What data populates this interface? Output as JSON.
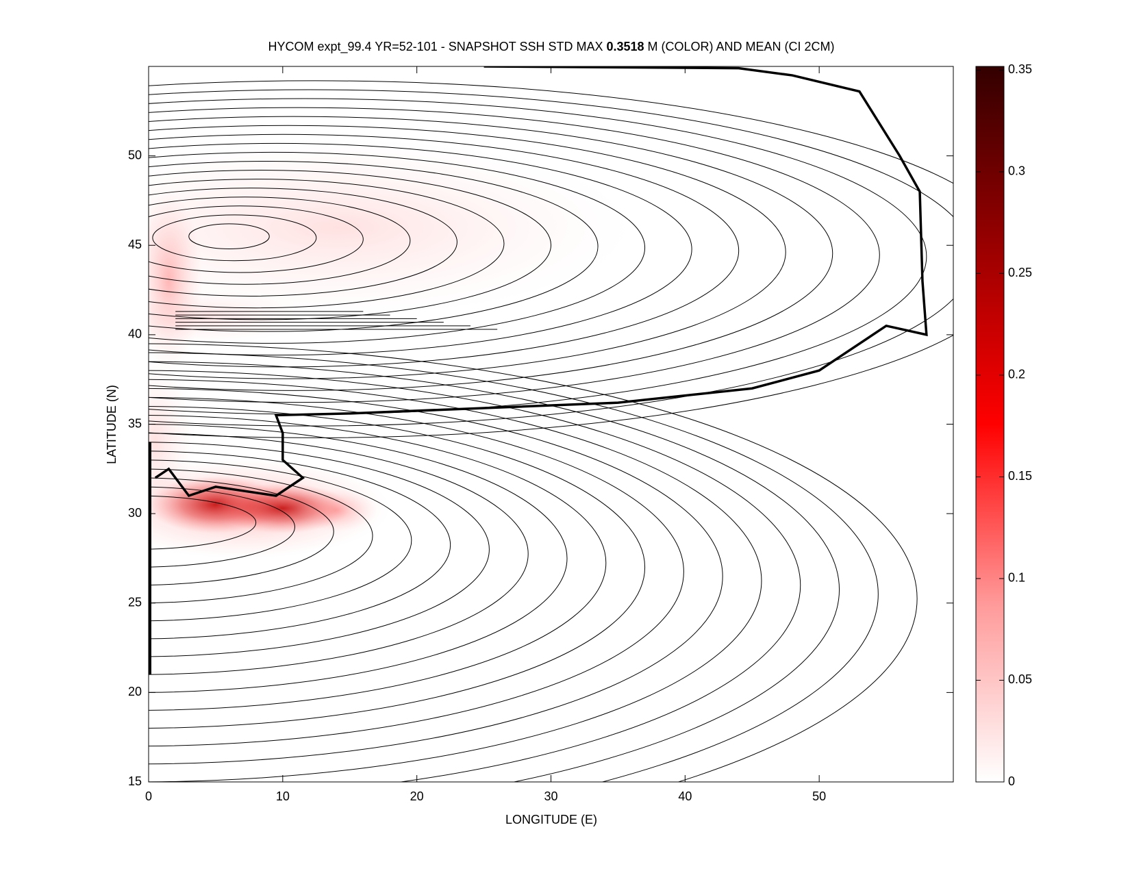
{
  "chart_data": {
    "type": "contour",
    "title_parts": [
      "HYCOM expt_99.4 YR=52-101 - SNAPSHOT SSH STD MAX ",
      "0.3518",
      " M (COLOR) AND MEAN (CI 2CM)"
    ],
    "x_label": "LONGITUDE (E)",
    "y_label": "LATITUDE (N)",
    "xlim": [
      0,
      60
    ],
    "xticks": [
      0,
      10,
      20,
      30,
      40,
      50
    ],
    "ylim": [
      15,
      55
    ],
    "yticks": [
      15,
      20,
      25,
      30,
      35,
      40,
      45,
      50
    ],
    "colorbar": {
      "lim": [
        0,
        0.3518
      ],
      "ticks": [
        0,
        0.05,
        0.1,
        0.15,
        0.2,
        0.25,
        0.3,
        0.35
      ],
      "colors": [
        "#ffffff",
        "#ff9999",
        "#ff0000",
        "#990000",
        "#330000"
      ]
    }
  }
}
